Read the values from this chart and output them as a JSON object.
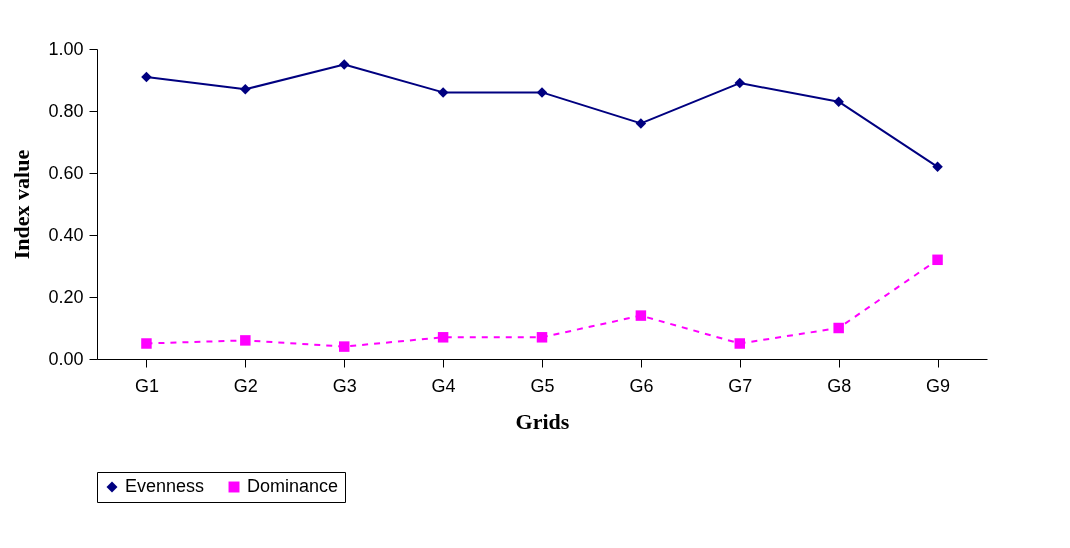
{
  "chart_data": {
    "type": "line",
    "xlabel": "Grids",
    "ylabel": "Index value",
    "categories": [
      "G1",
      "G2",
      "G3",
      "G4",
      "G5",
      "G6",
      "G7",
      "G8",
      "G9"
    ],
    "series": [
      {
        "name": "Evenness",
        "color": "#000080",
        "marker": "diamond",
        "line_style": "solid",
        "values": [
          0.91,
          0.87,
          0.95,
          0.86,
          0.86,
          0.76,
          0.89,
          0.83,
          0.62
        ]
      },
      {
        "name": "Dominance",
        "color": "#ff00ff",
        "marker": "square",
        "line_style": "dashed",
        "values": [
          0.05,
          0.06,
          0.04,
          0.07,
          0.07,
          0.14,
          0.05,
          0.1,
          0.32
        ]
      }
    ],
    "ylim": [
      0,
      1
    ],
    "yticks": [
      {
        "value": 0,
        "label": "0.00"
      },
      {
        "value": 0.2,
        "label": "0.20"
      },
      {
        "value": 0.4,
        "label": "0.40"
      },
      {
        "value": 0.6,
        "label": "0.60"
      },
      {
        "value": 0.8,
        "label": "0.80"
      },
      {
        "value": 1,
        "label": "1.00"
      }
    ],
    "grid": false,
    "legend": "bottom"
  }
}
